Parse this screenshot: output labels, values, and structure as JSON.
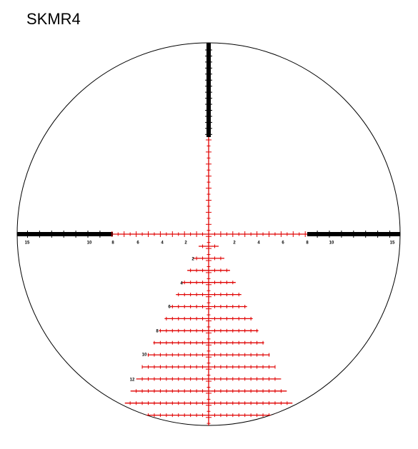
{
  "title": "SKMR4",
  "horizontal_labels": [
    "15",
    "10",
    "8",
    "6",
    "4",
    "2",
    "2",
    "4",
    "6",
    "8",
    "10",
    "15"
  ],
  "vertical_labels": [
    "2",
    "4",
    "6",
    "8",
    "10",
    "12"
  ]
}
